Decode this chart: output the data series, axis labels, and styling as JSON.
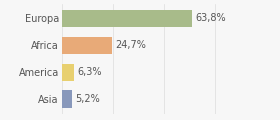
{
  "categories": [
    "Europa",
    "Africa",
    "America",
    "Asia"
  ],
  "values": [
    63.8,
    24.7,
    6.3,
    5.2
  ],
  "labels": [
    "63,8%",
    "24,7%",
    "6,3%",
    "5,2%"
  ],
  "bar_colors": [
    "#a8bb8a",
    "#e8aa78",
    "#e8d070",
    "#8898bb"
  ],
  "background_color": "#f7f7f7",
  "xlim": [
    0,
    100
  ],
  "bar_height": 0.65,
  "label_fontsize": 7,
  "category_fontsize": 7,
  "grid_color": "#dddddd",
  "text_color": "#555555"
}
